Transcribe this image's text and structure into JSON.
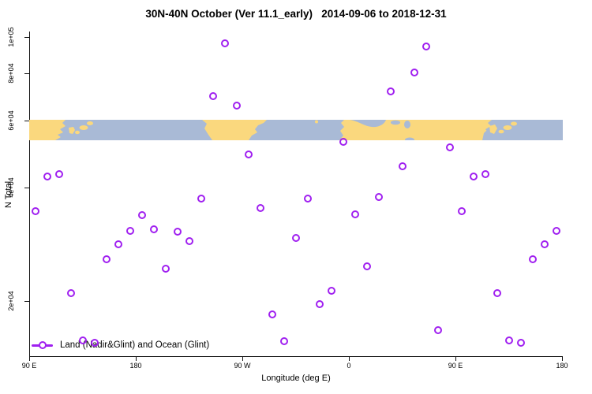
{
  "chart_data": {
    "type": "scatter",
    "title": "30N-40N October (Ver 11.1_early)   2014-09-06 to 2018-12-31",
    "xlabel": "Longitude (deg E)",
    "ylabel": "N Total",
    "x_axis_note": "longitude wraps: axis spans 90E through 180, 90W, 0, 90E to 180 (90 to 540 deg E continuous)",
    "x_range_deg_e": [
      90,
      540
    ],
    "y_scale": "log",
    "ylim": [
      14000,
      104000
    ],
    "grid": false,
    "legend_position": "bottom-left inside plot",
    "x_ticks": [
      {
        "value": 90,
        "label": "90 E"
      },
      {
        "value": 180,
        "label": "180"
      },
      {
        "value": 270,
        "label": "90 W"
      },
      {
        "value": 360,
        "label": "0"
      },
      {
        "value": 450,
        "label": "90 E"
      },
      {
        "value": 540,
        "label": "180"
      }
    ],
    "y_ticks": [
      {
        "value": 20000,
        "label": "2e+04"
      },
      {
        "value": 40000,
        "label": "4e+04"
      },
      {
        "value": 60000,
        "label": "6e+04"
      },
      {
        "value": 80000,
        "label": "8e+04"
      },
      {
        "value": 100000,
        "label": "1e+05"
      }
    ],
    "series": [
      {
        "name": "Land (Nadir&Glint) and Ocean (Glint)",
        "marker": "open-circle",
        "color": "#A020F0",
        "points": [
          {
            "x": 95,
            "y": 34600
          },
          {
            "x": 105,
            "y": 42800
          },
          {
            "x": 115,
            "y": 43400
          },
          {
            "x": 125,
            "y": 21000
          },
          {
            "x": 135,
            "y": 15700
          },
          {
            "x": 145,
            "y": 15500
          },
          {
            "x": 155,
            "y": 25800
          },
          {
            "x": 165,
            "y": 28200
          },
          {
            "x": 175,
            "y": 30700
          },
          {
            "x": 185,
            "y": 33700
          },
          {
            "x": 195,
            "y": 30900
          },
          {
            "x": 205,
            "y": 24300
          },
          {
            "x": 215,
            "y": 30500
          },
          {
            "x": 225,
            "y": 28800
          },
          {
            "x": 235,
            "y": 37300
          },
          {
            "x": 245,
            "y": 69700
          },
          {
            "x": 255,
            "y": 96200
          },
          {
            "x": 265,
            "y": 65800
          },
          {
            "x": 275,
            "y": 48900
          },
          {
            "x": 285,
            "y": 35200
          },
          {
            "x": 295,
            "y": 18400
          },
          {
            "x": 305,
            "y": 15600
          },
          {
            "x": 315,
            "y": 29400
          },
          {
            "x": 325,
            "y": 37300
          },
          {
            "x": 335,
            "y": 19600
          },
          {
            "x": 345,
            "y": 21300
          },
          {
            "x": 355,
            "y": 52800
          },
          {
            "x": 365,
            "y": 33900
          },
          {
            "x": 375,
            "y": 24700
          },
          {
            "x": 385,
            "y": 37700
          },
          {
            "x": 395,
            "y": 71800
          },
          {
            "x": 405,
            "y": 45500
          },
          {
            "x": 415,
            "y": 80500
          },
          {
            "x": 425,
            "y": 94400
          },
          {
            "x": 435,
            "y": 16700
          },
          {
            "x": 445,
            "y": 51000
          },
          {
            "x": 455,
            "y": 34600
          },
          {
            "x": 465,
            "y": 42800
          },
          {
            "x": 475,
            "y": 43400
          },
          {
            "x": 485,
            "y": 21000
          },
          {
            "x": 495,
            "y": 15700
          },
          {
            "x": 505,
            "y": 15500
          },
          {
            "x": 515,
            "y": 25800
          },
          {
            "x": 525,
            "y": 28200
          },
          {
            "x": 535,
            "y": 30700
          }
        ]
      }
    ],
    "map_band": {
      "description": "30N-40N land/ocean strip drawn across plot between y=53000 and y=60000",
      "land_color": "#FAD87E",
      "ocean_color": "#A9BAD6",
      "y_value_range": [
        53000,
        60000
      ]
    }
  },
  "legend": {
    "label": "Land (Nadir&Glint) and Ocean (Glint)"
  }
}
